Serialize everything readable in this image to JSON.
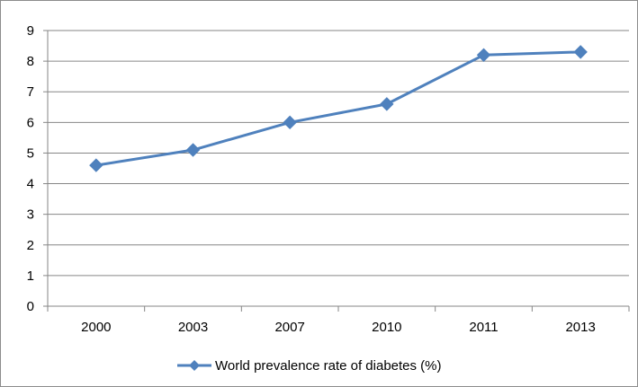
{
  "chart_data": {
    "type": "line",
    "categories": [
      "2000",
      "2003",
      "2007",
      "2010",
      "2011",
      "2013"
    ],
    "series": [
      {
        "name": "World prevalence rate of diabetes (%)",
        "values": [
          4.6,
          5.1,
          6.0,
          6.6,
          8.2,
          8.3
        ]
      }
    ],
    "ylim": [
      0,
      9
    ],
    "yticks": [
      "0",
      "1",
      "2",
      "3",
      "4",
      "5",
      "6",
      "7",
      "8",
      "9"
    ],
    "grid": true,
    "legend_position": "bottom",
    "marker": "diamond",
    "line_color": "#4F81BD",
    "grid_color": "#868686"
  }
}
